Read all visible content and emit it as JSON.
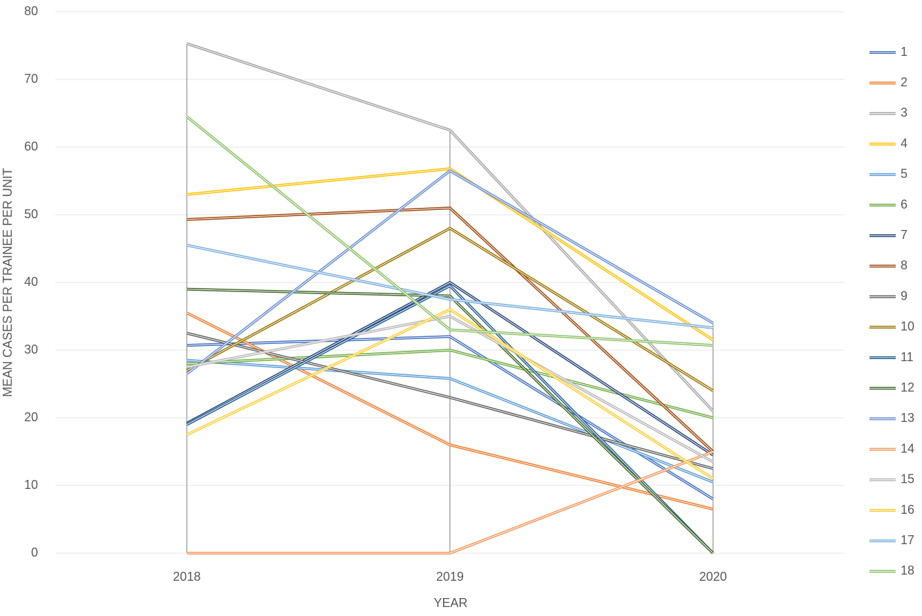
{
  "chart_data": {
    "type": "line",
    "x_label": "YEAR",
    "y_label": "MEAN CASES PER TRAINEE PER UNIT",
    "categories": [
      "2018",
      "2019",
      "2020"
    ],
    "ylim": [
      0,
      80
    ],
    "yticks": [
      0,
      10,
      20,
      30,
      40,
      50,
      60,
      70,
      80
    ],
    "grid": true,
    "legend": "right",
    "series": [
      {
        "name": "1",
        "color": "#4472c4",
        "values": [
          30.7,
          32,
          8
        ]
      },
      {
        "name": "2",
        "color": "#ed7d31",
        "values": [
          35.5,
          16,
          6.5
        ]
      },
      {
        "name": "3",
        "color": "#a5a5a5",
        "values": [
          75.3,
          62.5,
          21
        ]
      },
      {
        "name": "4",
        "color": "#ffc000",
        "values": [
          53,
          56.8,
          31.5
        ]
      },
      {
        "name": "5",
        "color": "#5b9bd5",
        "values": [
          28.5,
          25.8,
          10.5
        ]
      },
      {
        "name": "6",
        "color": "#70ad47",
        "values": [
          28,
          30,
          20
        ]
      },
      {
        "name": "7",
        "color": "#264478",
        "values": [
          19.2,
          40,
          14.5
        ]
      },
      {
        "name": "8",
        "color": "#9e480e",
        "values": [
          49.3,
          51,
          15
        ]
      },
      {
        "name": "9",
        "color": "#636363",
        "values": [
          32.5,
          23,
          12.5
        ]
      },
      {
        "name": "10",
        "color": "#997300",
        "values": [
          27,
          48,
          24
        ]
      },
      {
        "name": "11",
        "color": "#255e91",
        "values": [
          19,
          39.5,
          0
        ]
      },
      {
        "name": "12",
        "color": "#43682b",
        "values": [
          39,
          38,
          0
        ]
      },
      {
        "name": "13",
        "color": "#698ed0",
        "values": [
          26.5,
          56.5,
          34
        ]
      },
      {
        "name": "14",
        "color": "#f1975a",
        "values": [
          0,
          0,
          15
        ]
      },
      {
        "name": "15",
        "color": "#b7b7b7",
        "values": [
          27.5,
          35,
          13.5
        ]
      },
      {
        "name": "16",
        "color": "#ffcd33",
        "values": [
          17.5,
          36,
          11
        ]
      },
      {
        "name": "17",
        "color": "#7cafdd",
        "values": [
          45.5,
          37.5,
          33.3
        ]
      },
      {
        "name": "18",
        "color": "#8cc168",
        "values": [
          64.5,
          33,
          30.7
        ]
      }
    ]
  }
}
